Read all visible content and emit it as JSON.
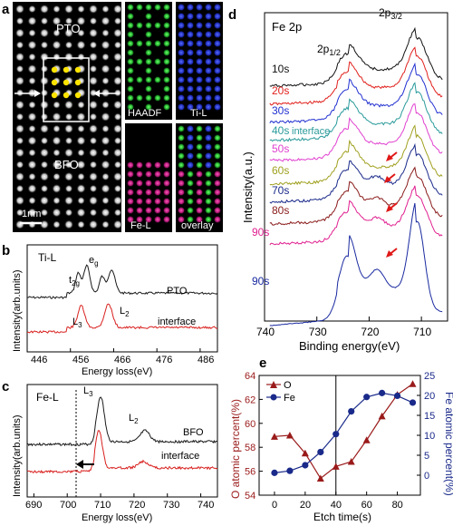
{
  "panels": {
    "a": "a",
    "b": "b",
    "c": "c",
    "d": "d",
    "e": "e"
  },
  "panel_a": {
    "labels": {
      "pto": "PTO",
      "bfo": "BFO",
      "scale": "1nm",
      "haadf": "HAADF",
      "ti": "Ti-L",
      "fe": "Fe-L",
      "overlay": "overlay"
    },
    "colors": {
      "haadf": "#22c43a",
      "ti": "#2a3cf0",
      "fe": "#d0208a",
      "bg": "#000000"
    }
  },
  "panel_b": {
    "title": "Ti-L",
    "ylabel": "Intensity(arb.units)",
    "xlabel": "Energy loss(eV)",
    "xticks": [
      "446",
      "456",
      "466",
      "476",
      "486"
    ],
    "peak_labels": {
      "t2g": "t",
      "t2g_sub": "2g",
      "eg": "e",
      "eg_sub": "g",
      "l3": "L",
      "l3_sub": "3",
      "l2": "L",
      "l2_sub": "2"
    },
    "series": [
      {
        "name": "PTO",
        "color": "#1a1a1a"
      },
      {
        "name": "interface",
        "color": "#d8201e"
      }
    ]
  },
  "panel_c": {
    "title": "Fe-L",
    "ylabel": "Intensity(arb.units)",
    "xlabel": "Energy loss(eV)",
    "xticks": [
      "690",
      "700",
      "710",
      "720",
      "730",
      "740"
    ],
    "peak_labels": {
      "l3": "L",
      "l3_sub": "3",
      "l2": "L",
      "l2_sub": "2"
    },
    "series": [
      {
        "name": "BFO",
        "color": "#1a1a1a"
      },
      {
        "name": "interface",
        "color": "#d8201e"
      }
    ]
  },
  "chart_data": [
    {
      "type": "line",
      "title": "Fe 2p",
      "xlabel": "Binding energy(eV)",
      "ylabel": "Intensity(a.u.)",
      "xlim": [
        740,
        705
      ],
      "xticks": [
        740,
        730,
        720,
        710
      ],
      "peak_labels": {
        "p12": "2p",
        "p12_sub": "1/2",
        "p32": "2p",
        "p32_sub": "3/2"
      },
      "annotation": "interface",
      "series": [
        {
          "name": "10s",
          "color": "#111111"
        },
        {
          "name": "20s",
          "color": "#e0201c"
        },
        {
          "name": "30s",
          "color": "#2030d0"
        },
        {
          "name": "40s",
          "color": "#2a9a9a"
        },
        {
          "name": "50s",
          "color": "#e040d0"
        },
        {
          "name": "60s",
          "color": "#a0a020"
        },
        {
          "name": "70s",
          "color": "#1a2a8a"
        },
        {
          "name": "80s",
          "color": "#8a1a1a"
        },
        {
          "name": "90s",
          "color": "#e02090"
        },
        {
          "name": "90s",
          "color": "#1a2aa0"
        }
      ]
    },
    {
      "type": "line",
      "xlabel": "Etch time(s)",
      "ylabel": "O atomic percent(%)",
      "y2label": "Fe atomic percent(%)",
      "xlim": [
        -10,
        95
      ],
      "ylim": [
        54,
        64
      ],
      "y2lim": [
        -5,
        25
      ],
      "xticks": [
        0,
        20,
        40,
        60,
        80
      ],
      "yticks": [
        54,
        56,
        58,
        60,
        62,
        64
      ],
      "y2ticks": [
        0,
        5,
        10,
        15,
        20,
        25
      ],
      "vline": 40,
      "series": [
        {
          "name": "O",
          "axis": "left",
          "color": "#9a1a1a",
          "marker": "triangle",
          "x": [
            0,
            10,
            20,
            30,
            40,
            50,
            60,
            70,
            80,
            90
          ],
          "y": [
            58.9,
            59.0,
            57.5,
            55.4,
            56.4,
            56.8,
            58.6,
            60.6,
            62.4,
            63.3
          ]
        },
        {
          "name": "Fe",
          "axis": "right",
          "color": "#1a2a8a",
          "marker": "circle",
          "x": [
            0,
            10,
            20,
            30,
            40,
            50,
            60,
            70,
            80,
            90
          ],
          "y": [
            0.6,
            1.1,
            2.5,
            5.8,
            10.3,
            16.0,
            19.6,
            20.6,
            19.9,
            18.2
          ]
        }
      ]
    }
  ]
}
